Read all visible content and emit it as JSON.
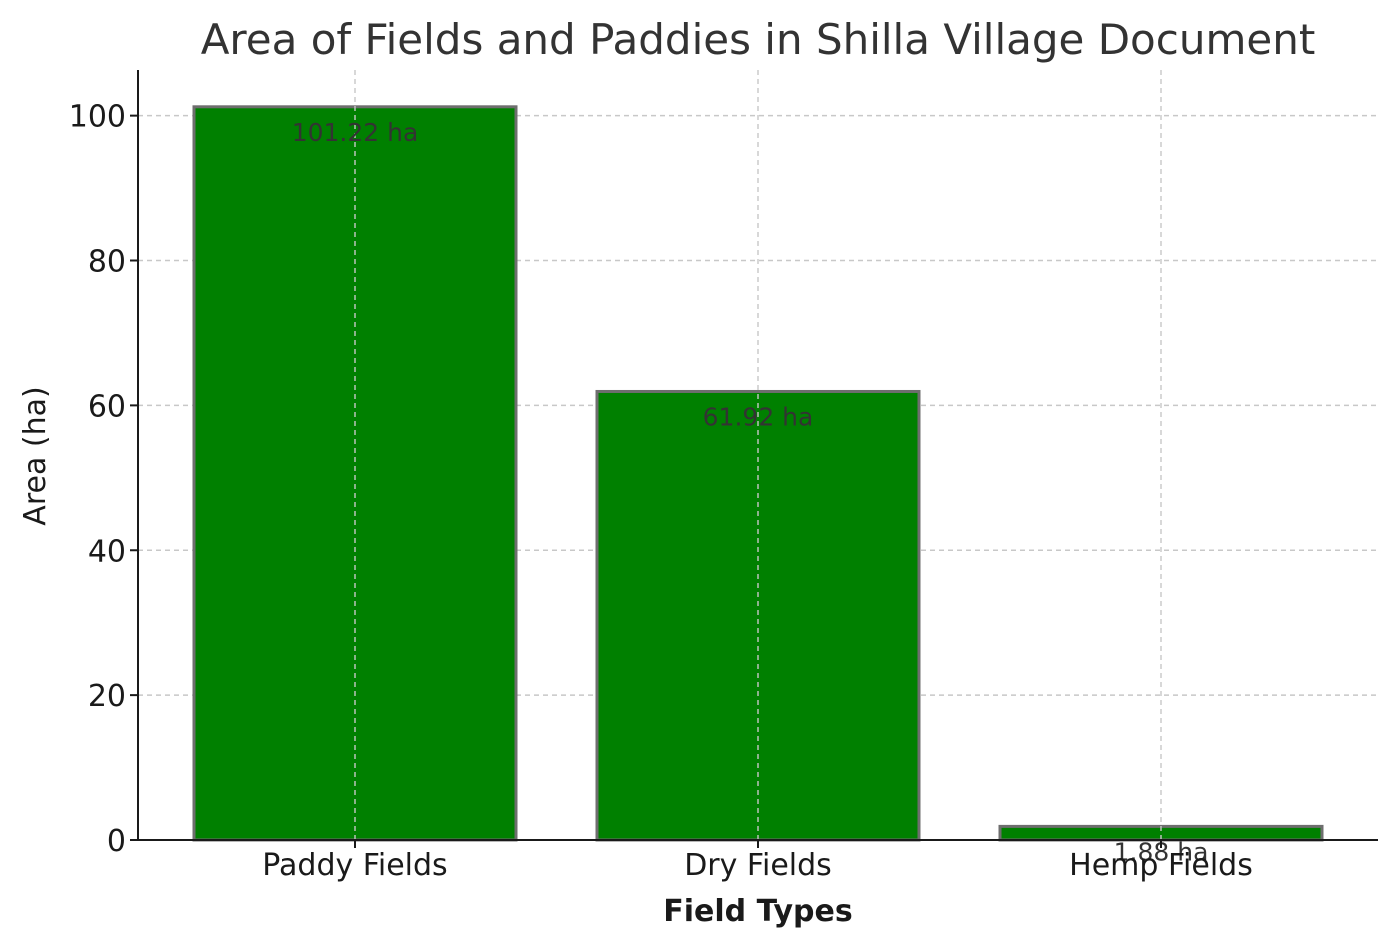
{
  "chart_data": {
    "type": "bar",
    "title": "Area of Fields and Paddies in Shilla Village Document",
    "xlabel": "Field Types",
    "ylabel": "Area (ha)",
    "categories": [
      "Paddy Fields",
      "Dry Fields",
      "Hemp Fields"
    ],
    "values": [
      101.22,
      61.92,
      1.88
    ],
    "data_labels": [
      "101.22 ha",
      "61.92 ha",
      "1.88 ha"
    ],
    "ylim": [
      0,
      106.3
    ],
    "yticks": [
      0,
      20,
      40,
      60,
      80,
      100
    ],
    "grid": true,
    "legend": "none",
    "colors": {
      "bar_fill": "#008000",
      "bar_edge": "#6e6e6e",
      "grid": "#c8c8c8",
      "axis": "#1a1a1a",
      "title": "#333333",
      "label": "#333333"
    }
  }
}
